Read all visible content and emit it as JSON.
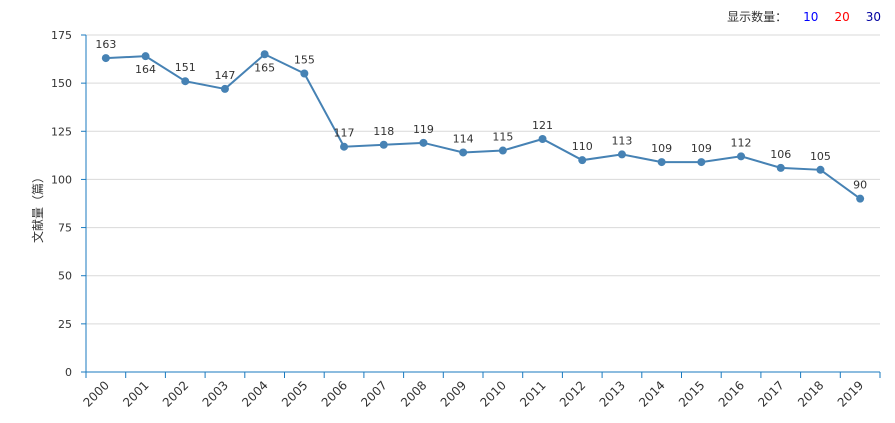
{
  "controls": {
    "display_count_label": "显示数量：",
    "count_options": [
      {
        "label": "10",
        "color": "#0000ff"
      },
      {
        "label": "20",
        "color": "#ff0000"
      },
      {
        "label": "30",
        "color": "#0000a0"
      }
    ]
  },
  "chart_data": {
    "type": "line",
    "title": "",
    "xlabel": "",
    "ylabel": "文献量（篇）",
    "ylim": [
      0,
      175
    ],
    "yticks": [
      0,
      25,
      50,
      75,
      100,
      125,
      150,
      175
    ],
    "grid": true,
    "x": [
      "2000",
      "2001",
      "2002",
      "2003",
      "2004",
      "2005",
      "2006",
      "2007",
      "2008",
      "2009",
      "2010",
      "2011",
      "2012",
      "2013",
      "2014",
      "2015",
      "2016",
      "2017",
      "2018",
      "2019"
    ],
    "series": [
      {
        "values": [
          163,
          164,
          151,
          147,
          165,
          155,
          117,
          118,
          119,
          114,
          115,
          121,
          110,
          113,
          109,
          109,
          112,
          106,
          105,
          90
        ],
        "color": "#4682b4"
      }
    ],
    "axis_color": "#1a7abf",
    "grid_color": "#d9d9d9"
  }
}
